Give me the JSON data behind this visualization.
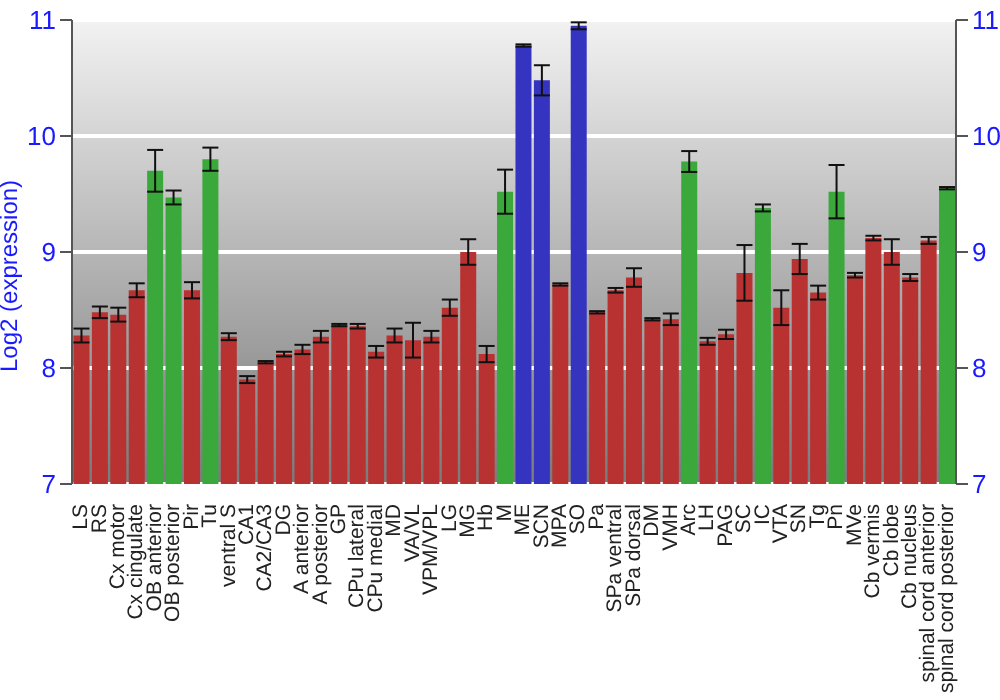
{
  "chart_data": {
    "type": "bar",
    "ylabel": "Log2 (expression)",
    "categories": [
      "LS",
      "RS",
      "Cx motor",
      "Cx cingulate",
      "OB anterior",
      "OB posterior",
      "Pir",
      "Tu",
      "ventral S",
      "CA1",
      "CA2/CA3",
      "DG",
      "A anterior",
      "A posterior",
      "GP",
      "CPu lateral",
      "CPu medial",
      "MD",
      "VA/VL",
      "VPM/VPL",
      "LG",
      "MG",
      "Hb",
      "M",
      "ME",
      "SCN",
      "MPA",
      "SO",
      "Pa",
      "SPa ventral",
      "SPa dorsal",
      "DM",
      "VMH",
      "Arc",
      "LH",
      "PAG",
      "SC",
      "IC",
      "VTA",
      "SN",
      "Tg",
      "Pn",
      "MVe",
      "Cb vermis",
      "Cb lobe",
      "Cb nucleus",
      "spinal cord anterior",
      "spinal cord posterior"
    ],
    "values": [
      8.28,
      8.48,
      8.46,
      8.67,
      9.7,
      9.47,
      8.67,
      9.8,
      8.27,
      7.9,
      8.05,
      8.12,
      8.16,
      8.27,
      8.37,
      8.36,
      8.14,
      8.28,
      8.24,
      8.27,
      8.52,
      9.0,
      8.12,
      9.52,
      10.78,
      10.48,
      8.72,
      10.95,
      8.48,
      8.67,
      8.78,
      8.42,
      8.42,
      9.78,
      8.23,
      8.29,
      8.82,
      9.38,
      8.52,
      8.94,
      8.65,
      9.52,
      8.8,
      9.12,
      9.0,
      8.78,
      9.1,
      9.55
    ],
    "errors": [
      0.06,
      0.05,
      0.06,
      0.06,
      0.18,
      0.06,
      0.07,
      0.1,
      0.03,
      0.03,
      0.01,
      0.02,
      0.04,
      0.05,
      0.01,
      0.02,
      0.05,
      0.06,
      0.15,
      0.05,
      0.07,
      0.11,
      0.07,
      0.19,
      0.01,
      0.13,
      0.01,
      0.03,
      0.01,
      0.02,
      0.08,
      0.01,
      0.05,
      0.09,
      0.03,
      0.04,
      0.24,
      0.03,
      0.15,
      0.13,
      0.06,
      0.23,
      0.02,
      0.02,
      0.11,
      0.03,
      0.03,
      0.01
    ],
    "colors": [
      "#b83232",
      "#b83232",
      "#b83232",
      "#b83232",
      "#3aa83a",
      "#3aa83a",
      "#b83232",
      "#3aa83a",
      "#b83232",
      "#b83232",
      "#b83232",
      "#b83232",
      "#b83232",
      "#b83232",
      "#b83232",
      "#b83232",
      "#b83232",
      "#b83232",
      "#b83232",
      "#b83232",
      "#b83232",
      "#b83232",
      "#b83232",
      "#3aa83a",
      "#3434c0",
      "#3434c0",
      "#b83232",
      "#3434c0",
      "#b83232",
      "#b83232",
      "#b83232",
      "#b83232",
      "#b83232",
      "#3aa83a",
      "#b83232",
      "#b83232",
      "#b83232",
      "#3aa83a",
      "#b83232",
      "#b83232",
      "#b83232",
      "#3aa83a",
      "#b83232",
      "#b83232",
      "#b83232",
      "#b83232",
      "#b83232",
      "#3aa83a"
    ],
    "ylim": [
      7,
      11
    ],
    "yticks": [
      7,
      8,
      9,
      10,
      11
    ],
    "y2lim": [
      7,
      11
    ],
    "y2ticks": [
      7,
      8,
      9,
      10,
      11
    ],
    "grid": "y"
  }
}
